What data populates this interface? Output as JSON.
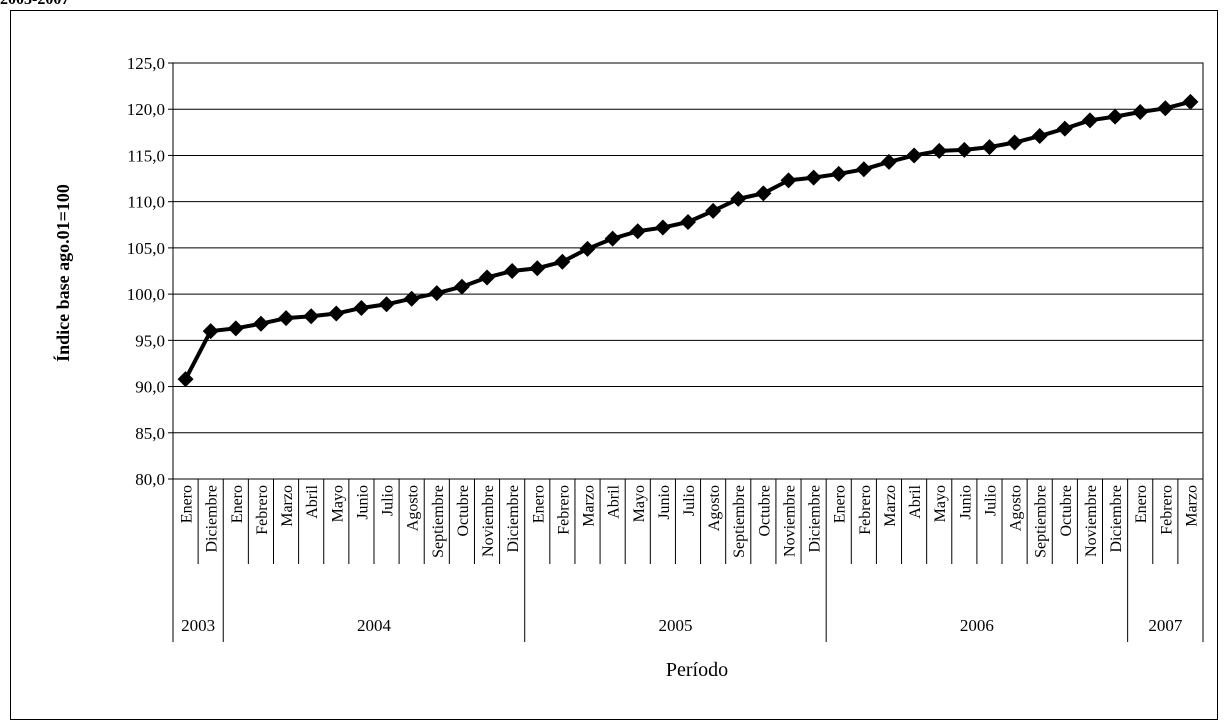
{
  "top_caption": "2003-2007",
  "chart_data": {
    "type": "line",
    "title": "",
    "xlabel": "Período",
    "ylabel": "Índice base ago.01=100",
    "ylim": [
      80,
      125
    ],
    "yticks": [
      "80,0",
      "85,0",
      "90,0",
      "95,0",
      "100,0",
      "105,0",
      "110,0",
      "115,0",
      "120,0",
      "125,0"
    ],
    "grid": "horizontal",
    "legend": "none",
    "line_color": "#000000",
    "marker": "diamond",
    "categories": [
      "Enero",
      "Diciembre",
      "Enero",
      "Febrero",
      "Marzo",
      "Abril",
      "Mayo",
      "Junio",
      "Julio",
      "Agosto",
      "Septiembre",
      "Octubre",
      "Noviembre",
      "Diciembre",
      "Enero",
      "Febrero",
      "Marzo",
      "Abril",
      "Mayo",
      "Junio",
      "Julio",
      "Agosto",
      "Septiembre",
      "Octubre",
      "Noviembre",
      "Diciembre",
      "Enero",
      "Febrero",
      "Marzo",
      "Abril",
      "Mayo",
      "Junio",
      "Julio",
      "Agosto",
      "Septiembre",
      "Octubre",
      "Noviembre",
      "Diciembre",
      "Enero",
      "Febrero",
      "Marzo"
    ],
    "year_groups": [
      {
        "label": "2003",
        "count": 2
      },
      {
        "label": "2004",
        "count": 12
      },
      {
        "label": "2005",
        "count": 12
      },
      {
        "label": "2006",
        "count": 12
      },
      {
        "label": "2007",
        "count": 3
      }
    ],
    "values": [
      90.8,
      96.0,
      96.3,
      96.8,
      97.4,
      97.6,
      97.9,
      98.5,
      98.9,
      99.5,
      100.1,
      100.8,
      101.8,
      102.5,
      102.8,
      103.5,
      104.9,
      106.0,
      106.8,
      107.2,
      107.8,
      109.0,
      110.3,
      110.9,
      112.3,
      112.6,
      113.0,
      113.5,
      114.3,
      115.0,
      115.5,
      115.6,
      115.9,
      116.4,
      117.1,
      117.9,
      118.8,
      119.2,
      119.7,
      120.1,
      120.8
    ]
  }
}
